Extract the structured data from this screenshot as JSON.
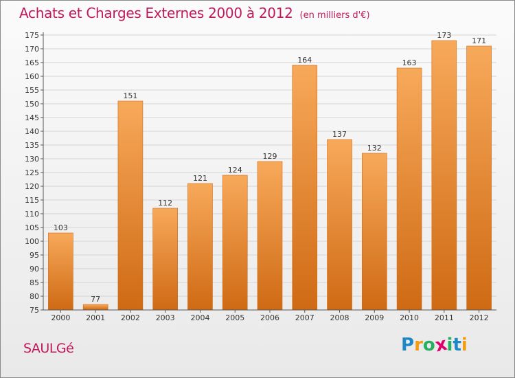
{
  "chart_data": {
    "type": "bar",
    "title": "Achats et Charges Externes 2000 à 2012",
    "subtitle": "(en milliers d'€)",
    "categories": [
      "2000",
      "2001",
      "2002",
      "2003",
      "2004",
      "2005",
      "2006",
      "2007",
      "2008",
      "2009",
      "2010",
      "2011",
      "2012"
    ],
    "values": [
      103,
      77,
      151,
      112,
      121,
      124,
      129,
      164,
      137,
      132,
      163,
      173,
      171
    ],
    "ylim": [
      75,
      175
    ],
    "yticks": [
      75,
      80,
      85,
      90,
      95,
      100,
      105,
      110,
      115,
      120,
      125,
      130,
      135,
      140,
      145,
      150,
      155,
      160,
      165,
      170,
      175
    ],
    "grid": true,
    "bar_color": "#e8822a",
    "bar_color_light": "#f7a95a",
    "bar_color_dark": "#cf6a14"
  },
  "commune": "SAULGé",
  "brand": {
    "letters": [
      "P",
      "r",
      "o",
      "x",
      "i",
      "t",
      "i"
    ],
    "colors": [
      "#1e88c7",
      "#f39c12",
      "#27ae60",
      "#e0006d",
      "#27ae60",
      "#1e88c7",
      "#f39c12"
    ]
  },
  "colors": {
    "title": "#c2185b",
    "grid": "#d4d4d4",
    "axis": "#555555",
    "text": "#333333"
  }
}
